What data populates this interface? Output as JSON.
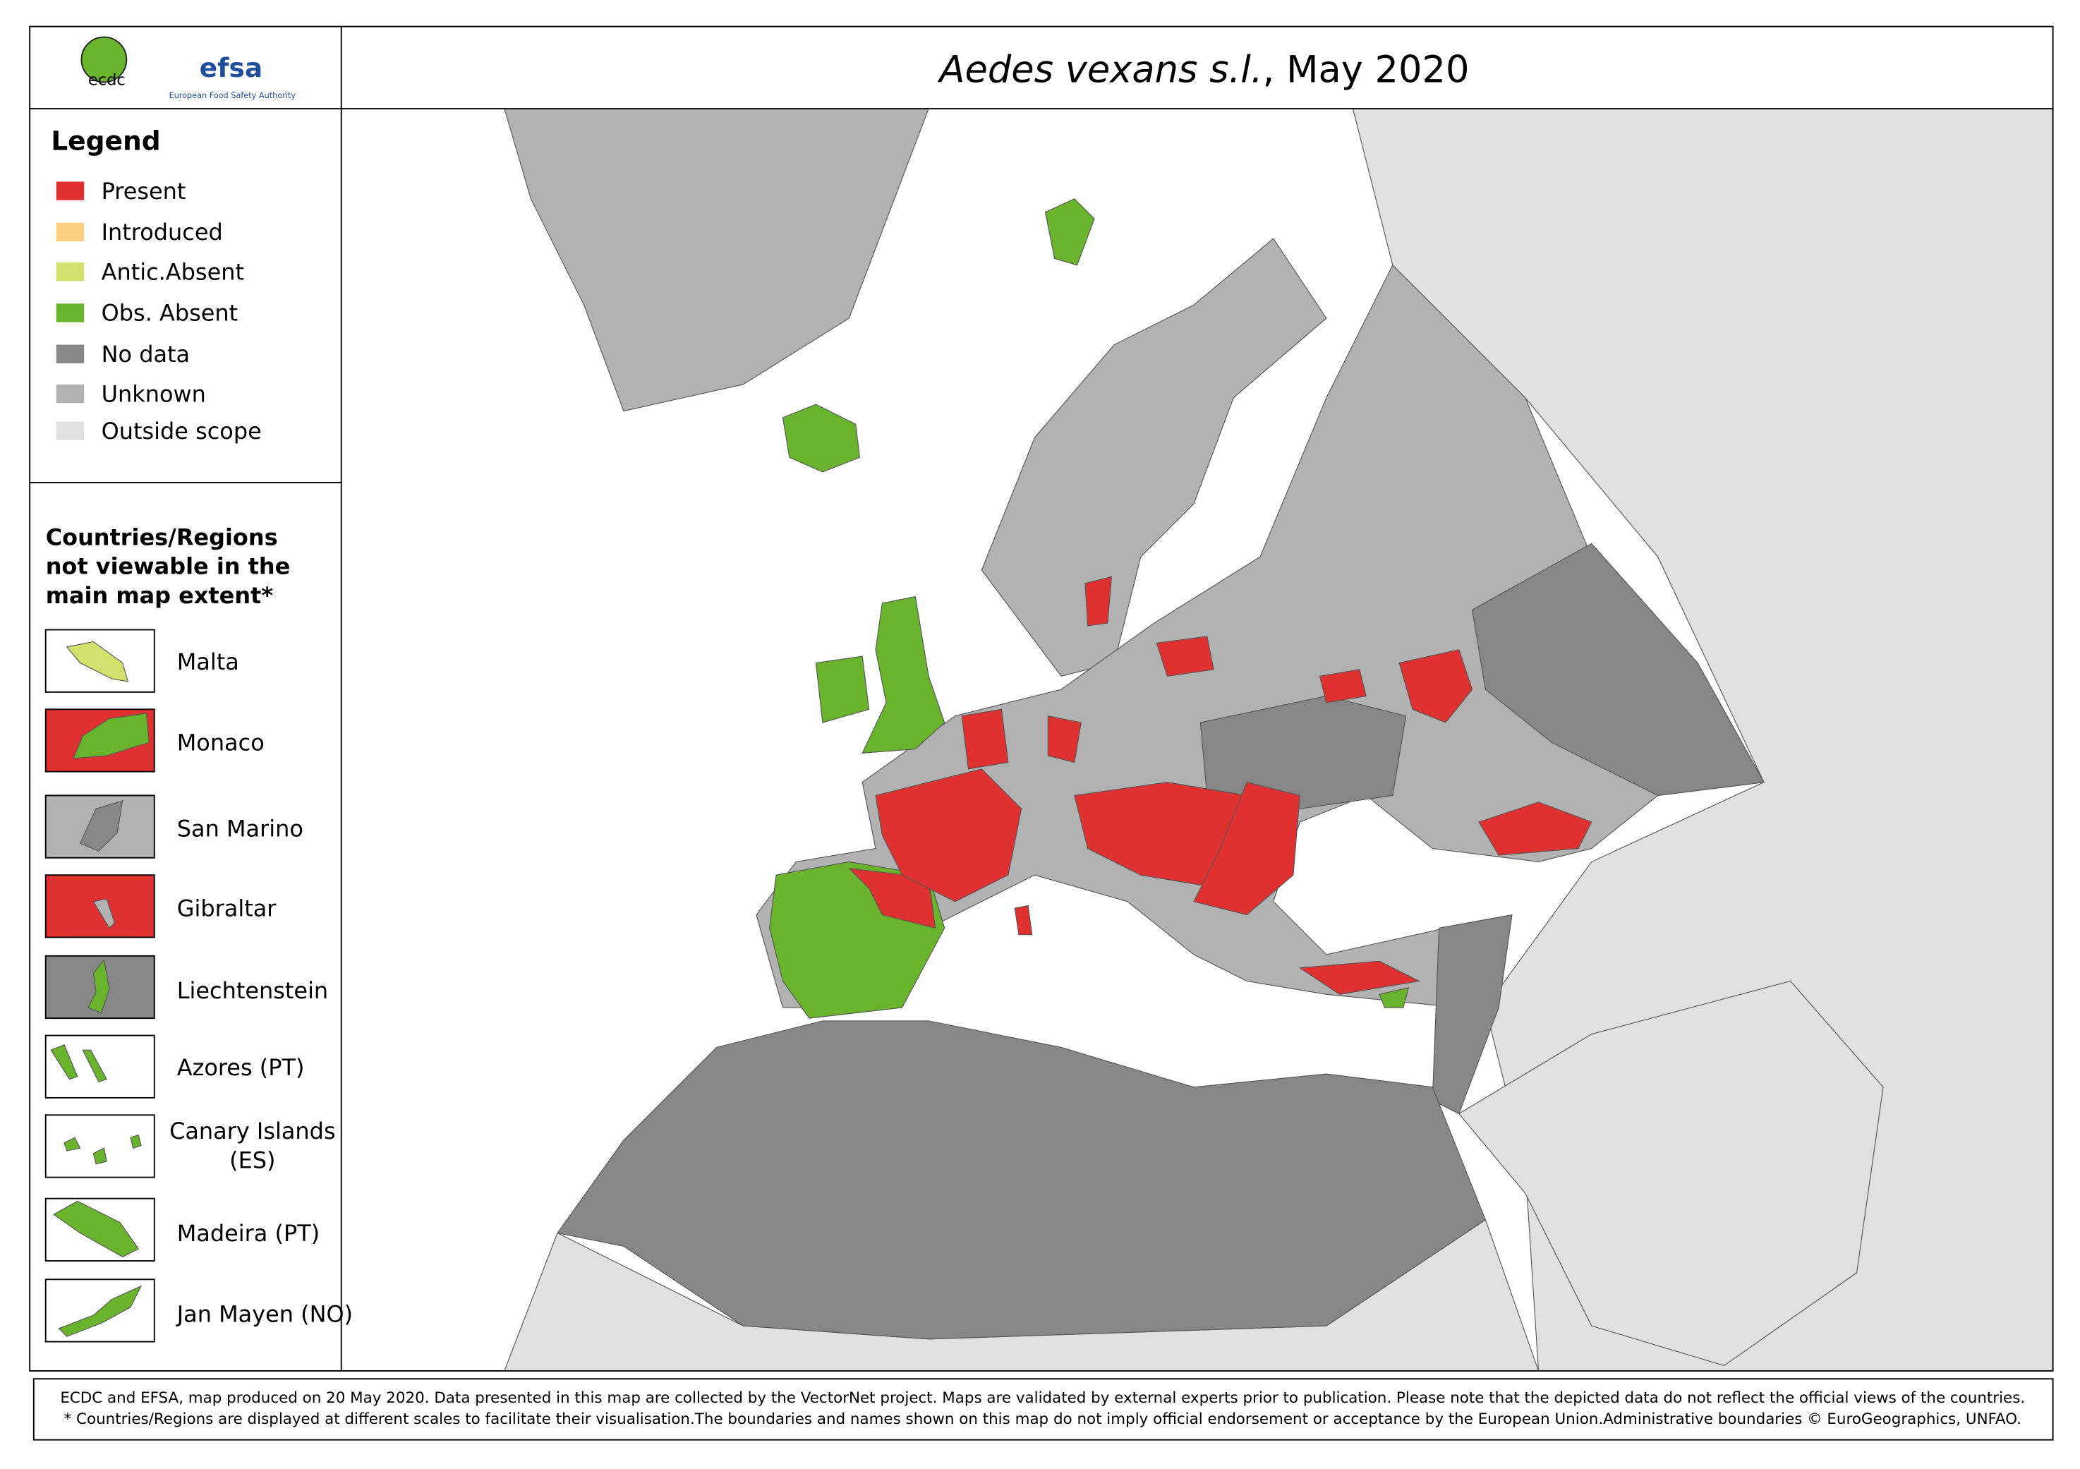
{
  "header": {
    "logo_ecdc": "ecdc",
    "logo_efsa": "efsa",
    "logo_efsa_subtitle": "European Food Safety Authority",
    "title_species": "Aedes vexans s.l.",
    "title_date": ", May 2020"
  },
  "legend": {
    "title": "Legend",
    "items": [
      {
        "label": "Present",
        "color": "#e03131"
      },
      {
        "label": "Introduced",
        "color": "#fdd17f"
      },
      {
        "label": "Antic.Absent",
        "color": "#d3e06b"
      },
      {
        "label": "Obs. Absent",
        "color": "#69b42c"
      },
      {
        "label": "No data",
        "color": "#878787"
      },
      {
        "label": "Unknown",
        "color": "#b2b2b2"
      },
      {
        "label": "Outside scope",
        "color": "#e1e1e1"
      }
    ]
  },
  "insets": {
    "title": "Countries/Regions not viewable in the main map extent*",
    "items": [
      "Malta",
      "Monaco",
      "San Marino",
      "Gibraltar",
      "Liechtenstein",
      "Azores (PT)",
      "Canary Islands (ES)",
      "Madeira (PT)",
      "Jan Mayen (NO)"
    ]
  },
  "footer": {
    "line1": "ECDC and EFSA, map produced on 20 May 2020. Data presented in this map are collected by the VectorNet project. Maps are validated by external experts prior to publication. Please note that the depicted data do not reflect the official views of the countries.",
    "line2": "* Countries/Regions are displayed at different scales to facilitate their visualisation.The boundaries and names shown on this map do not imply official endorsement or acceptance by the European Union.Administrative boundaries © EuroGeographics, UNFAO."
  }
}
